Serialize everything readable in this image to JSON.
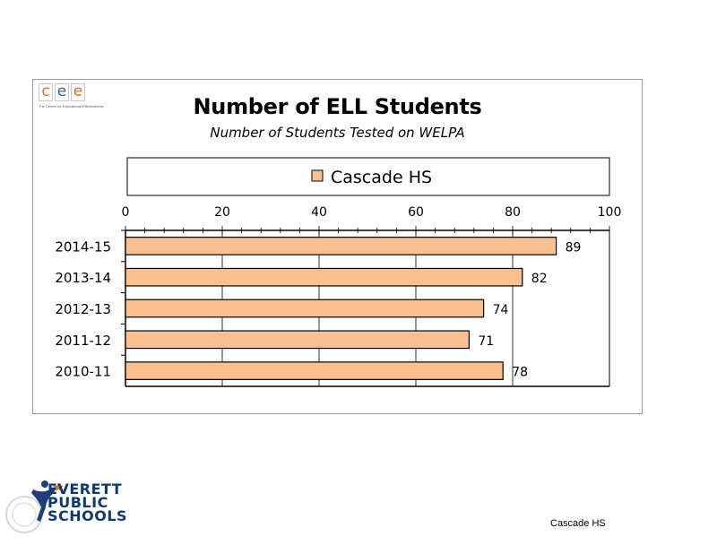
{
  "logo": {
    "letters": [
      "c",
      "e",
      "e"
    ],
    "letter_colors": [
      "#e07020",
      "#3c5ea8",
      "#e07020"
    ],
    "tagline": "The Center for Educational Effectiveness"
  },
  "chart_data": {
    "type": "bar",
    "orientation": "horizontal",
    "title": "Number of ELL Students",
    "subtitle": "Number of Students Tested on WELPA",
    "categories": [
      "2014-15",
      "2013-14",
      "2012-13",
      "2011-12",
      "2010-11"
    ],
    "series": [
      {
        "name": "Cascade HS",
        "values": [
          89,
          82,
          74,
          71,
          78
        ],
        "color": "#fac090",
        "stroke": "#000000"
      }
    ],
    "xlim": [
      0,
      100
    ],
    "x_ticks": [
      0,
      20,
      40,
      60,
      80,
      100
    ],
    "x_axis_position": "top",
    "grid": true,
    "legend": "top",
    "data_labels": true
  },
  "footer": {
    "district_logo_lines": [
      "EVERETT",
      "PUBLIC",
      "SCHOOLS"
    ],
    "label": "Cascade HS"
  }
}
